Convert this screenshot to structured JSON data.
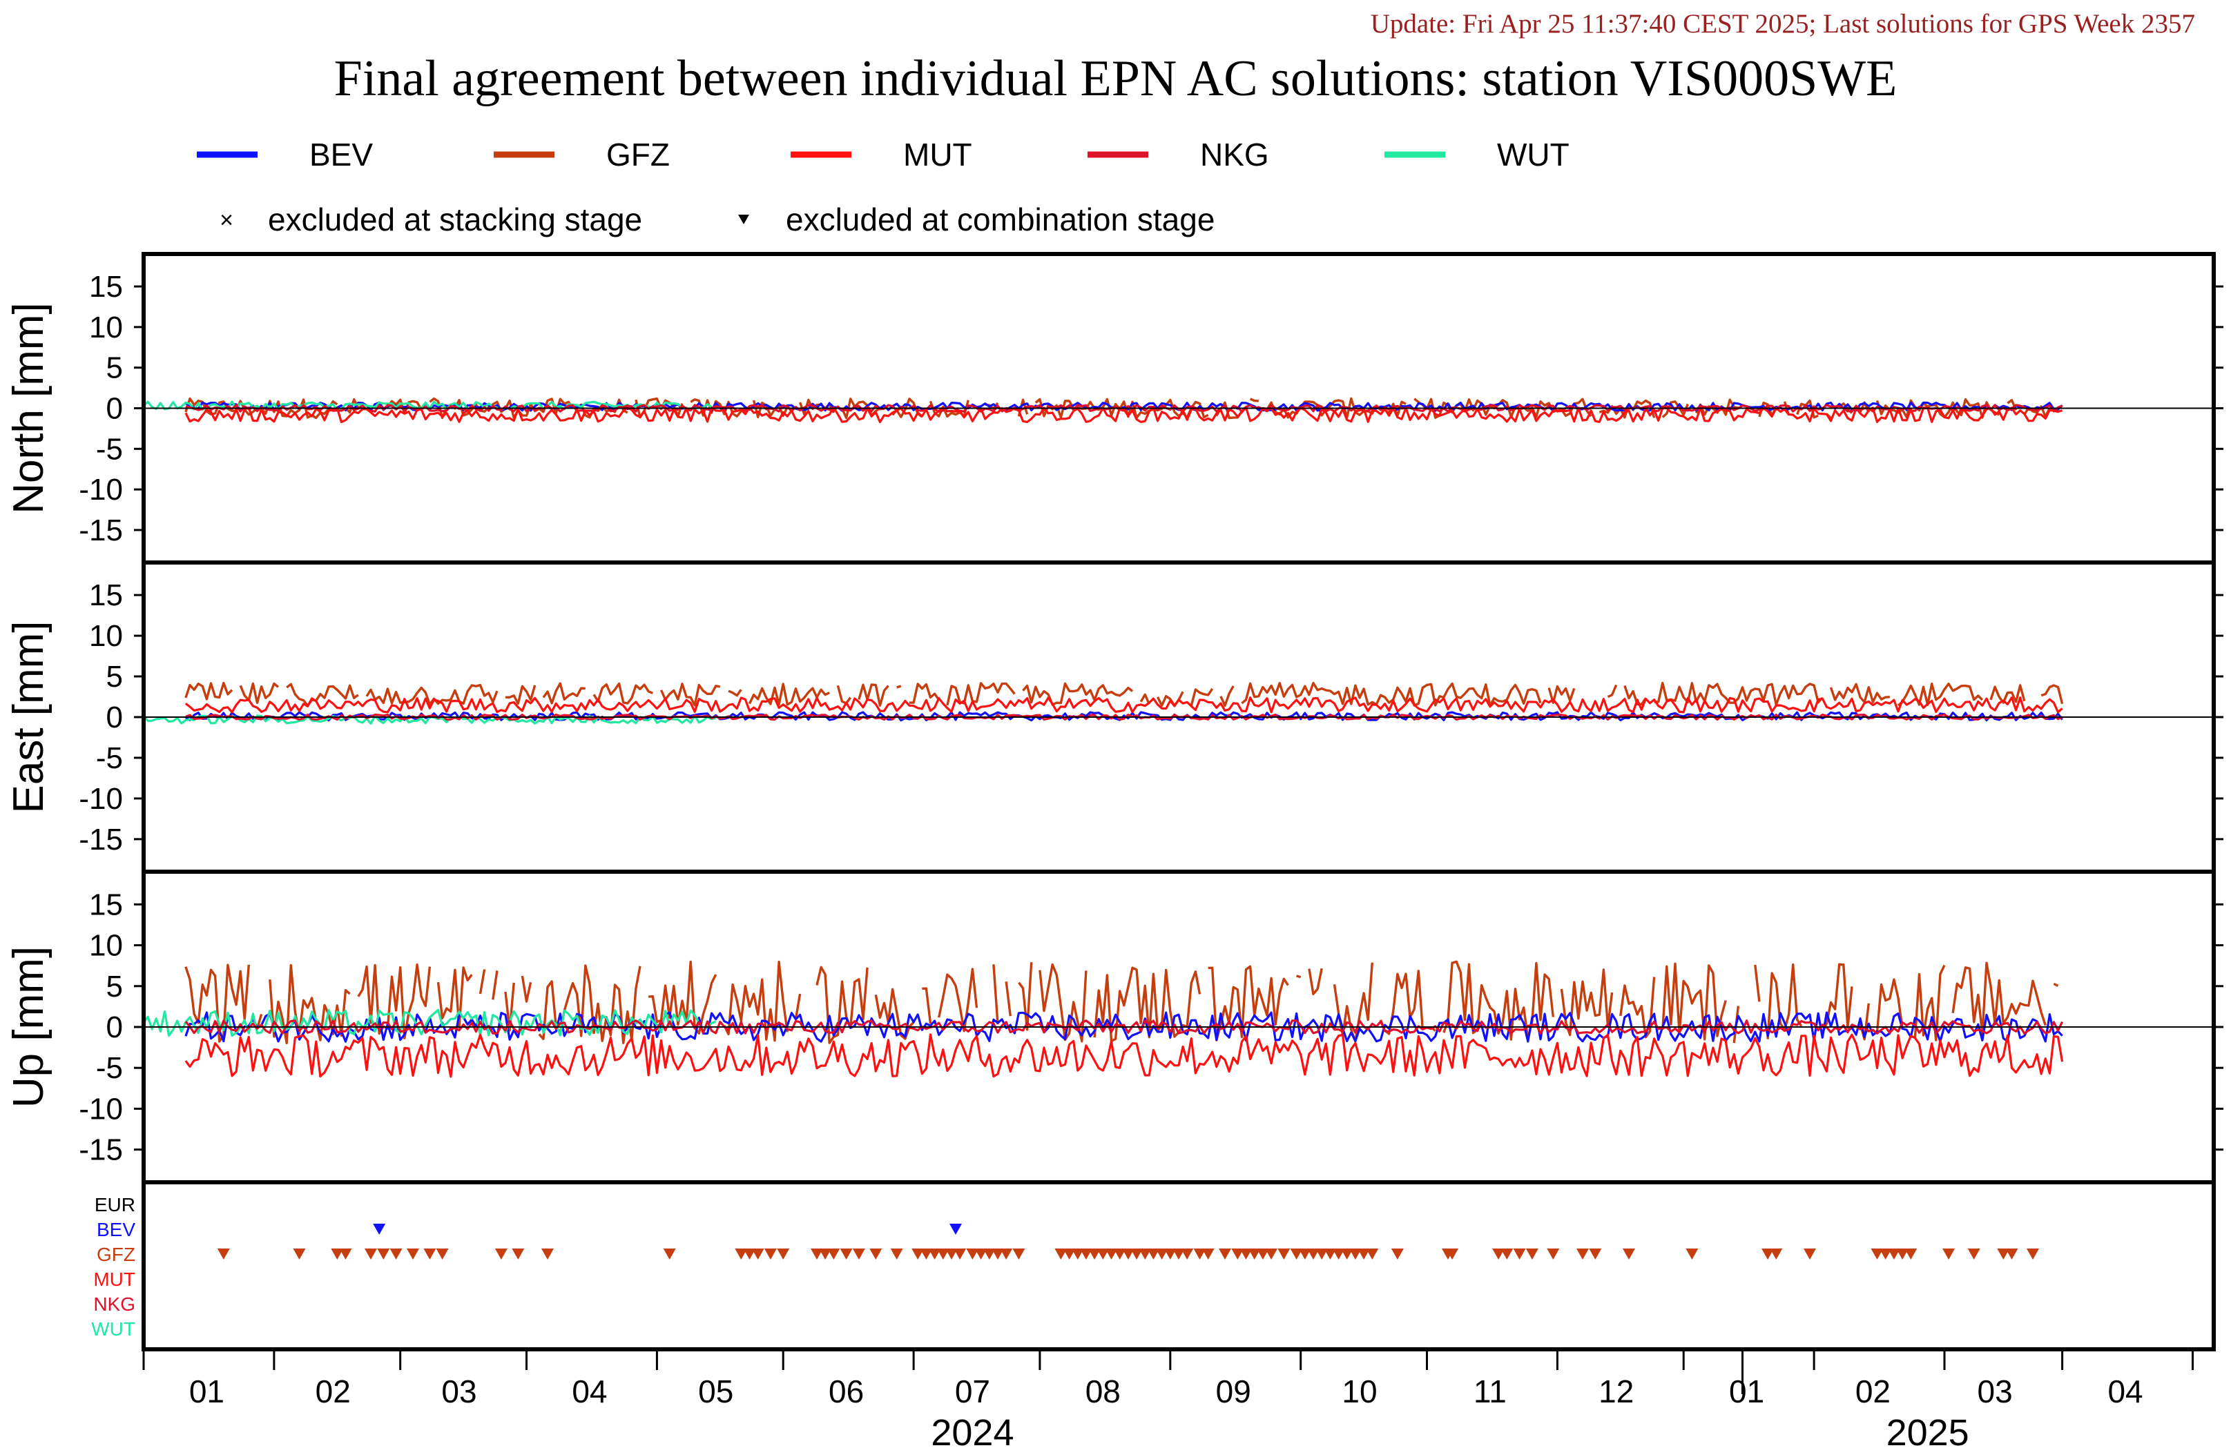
{
  "update_text": "Update: Fri Apr 25 11:37:40 CEST 2025; Last solutions for GPS Week 2357",
  "chart_data": {
    "type": "line",
    "title": "Final agreement between individual EPN AC solutions: station VIS000SWE",
    "legend": {
      "placement": "top",
      "series": [
        {
          "name": "BEV",
          "color": "#1010ff"
        },
        {
          "name": "GFZ",
          "color": "#c63d0e"
        },
        {
          "name": "MUT",
          "color": "#ff1010"
        },
        {
          "name": "NKG",
          "color": "#e0102a"
        },
        {
          "name": "WUT",
          "color": "#20e8a0"
        }
      ],
      "markers": [
        {
          "symbol": "×",
          "label": "excluded at stacking stage"
        },
        {
          "symbol": "▼",
          "label": "excluded at combination stage"
        }
      ]
    },
    "panels": [
      {
        "ylabel": "North [mm]",
        "ylim": [
          -19,
          19
        ],
        "yticks": [
          15,
          10,
          5,
          0,
          -5,
          -10,
          -15
        ],
        "series": [
          {
            "name": "BEV",
            "mean": 0.2,
            "amp": 0.5
          },
          {
            "name": "GFZ",
            "mean": 0.0,
            "amp": 1.2
          },
          {
            "name": "MUT",
            "mean": -0.8,
            "amp": 0.9
          },
          {
            "name": "NKG",
            "mean": 0.0,
            "amp": 0.4
          },
          {
            "name": "WUT",
            "mean": 0.3,
            "amp": 0.5
          }
        ]
      },
      {
        "ylabel": "East [mm]",
        "ylim": [
          -19,
          19
        ],
        "yticks": [
          15,
          10,
          5,
          0,
          -5,
          -10,
          -15
        ],
        "series": [
          {
            "name": "BEV",
            "mean": 0.1,
            "amp": 0.5
          },
          {
            "name": "GFZ",
            "mean": 2.8,
            "amp": 1.4
          },
          {
            "name": "MUT",
            "mean": 1.5,
            "amp": 0.9
          },
          {
            "name": "NKG",
            "mean": 0.0,
            "amp": 0.3
          },
          {
            "name": "WUT",
            "mean": -0.3,
            "amp": 0.5
          }
        ]
      },
      {
        "ylabel": "Up [mm]",
        "ylim": [
          -19,
          19
        ],
        "yticks": [
          15,
          10,
          5,
          0,
          -5,
          -10,
          -15
        ],
        "series": [
          {
            "name": "BEV",
            "mean": 0.0,
            "amp": 1.8
          },
          {
            "name": "GFZ",
            "mean": 3.0,
            "amp": 5.0
          },
          {
            "name": "MUT",
            "mean": -3.5,
            "amp": 2.6
          },
          {
            "name": "NKG",
            "mean": 0.0,
            "amp": 0.8
          },
          {
            "name": "WUT",
            "mean": 0.5,
            "amp": 1.6
          }
        ]
      }
    ],
    "exclusion_panel": {
      "rows": [
        {
          "label": "EUR",
          "color": "#000000"
        },
        {
          "label": "BEV",
          "color": "#1010ff"
        },
        {
          "label": "GFZ",
          "color": "#c63d0e"
        },
        {
          "label": "MUT",
          "color": "#ff1010"
        },
        {
          "label": "NKG",
          "color": "#e0102a"
        },
        {
          "label": "WUT",
          "color": "#20e8a0"
        }
      ],
      "combination_excluded": {
        "BEV": [
          "2024-02-11",
          "2024-06-27"
        ],
        "GFZ": [
          "2024-01-05",
          "2024-01-23",
          "2024-02-01",
          "2024-02-03",
          "2024-02-09",
          "2024-02-12",
          "2024-02-15",
          "2024-02-19",
          "2024-02-23",
          "2024-02-26",
          "2024-03-11",
          "2024-03-15",
          "2024-03-22",
          "2024-04-20",
          "2024-05-07",
          "2024-05-09",
          "2024-05-11",
          "2024-05-14",
          "2024-05-17",
          "2024-05-25",
          "2024-05-27",
          "2024-05-29",
          "2024-06-01",
          "2024-06-04",
          "2024-06-08",
          "2024-06-13",
          "2024-06-18",
          "2024-06-20",
          "2024-06-22",
          "2024-06-24",
          "2024-06-26",
          "2024-06-28",
          "2024-07-01",
          "2024-07-03",
          "2024-07-05",
          "2024-07-07",
          "2024-07-09",
          "2024-07-12",
          "2024-07-22",
          "2024-07-24",
          "2024-07-26",
          "2024-07-28",
          "2024-07-30",
          "2024-08-01",
          "2024-08-03",
          "2024-08-05",
          "2024-08-07",
          "2024-08-09",
          "2024-08-11",
          "2024-08-13",
          "2024-08-15",
          "2024-08-17",
          "2024-08-19",
          "2024-08-21",
          "2024-08-24",
          "2024-08-26",
          "2024-08-30",
          "2024-09-02",
          "2024-09-04",
          "2024-09-06",
          "2024-09-08",
          "2024-09-10",
          "2024-09-13",
          "2024-09-16",
          "2024-09-18",
          "2024-09-20",
          "2024-09-22",
          "2024-09-24",
          "2024-09-26",
          "2024-09-28",
          "2024-09-30",
          "2024-10-02",
          "2024-10-04",
          "2024-10-10",
          "2024-10-22",
          "2024-10-23",
          "2024-11-03",
          "2024-11-05",
          "2024-11-08",
          "2024-11-11",
          "2024-11-16",
          "2024-11-23",
          "2024-11-26",
          "2024-12-04",
          "2024-12-19",
          "2025-01-06",
          "2025-01-08",
          "2025-01-16",
          "2025-02-01",
          "2025-02-03",
          "2025-02-05",
          "2025-02-07",
          "2025-02-09",
          "2025-02-18",
          "2025-02-24",
          "2025-03-03",
          "2025-03-05",
          "2025-03-10"
        ]
      }
    },
    "x_axis": {
      "range": [
        "2023-12-17",
        "2025-04-22"
      ],
      "month_ticks": [
        "2023-12-17",
        "2024-01-17",
        "2024-02-16",
        "2024-03-17",
        "2024-04-17",
        "2024-05-17",
        "2024-06-17",
        "2024-07-17",
        "2024-08-17",
        "2024-09-17",
        "2024-10-17",
        "2024-11-17",
        "2024-12-17",
        "2025-01-17",
        "2025-02-17",
        "2025-03-17",
        "2025-04-17"
      ],
      "month_labels": [
        {
          "text": "01",
          "date": "2024-01-01"
        },
        {
          "text": "02",
          "date": "2024-01-31"
        },
        {
          "text": "03",
          "date": "2024-03-01"
        },
        {
          "text": "04",
          "date": "2024-04-01"
        },
        {
          "text": "05",
          "date": "2024-05-01"
        },
        {
          "text": "06",
          "date": "2024-06-01"
        },
        {
          "text": "07",
          "date": "2024-07-01"
        },
        {
          "text": "08",
          "date": "2024-08-01"
        },
        {
          "text": "09",
          "date": "2024-09-01"
        },
        {
          "text": "10",
          "date": "2024-10-01"
        },
        {
          "text": "11",
          "date": "2024-11-01"
        },
        {
          "text": "12",
          "date": "2024-12-01"
        },
        {
          "text": "01",
          "date": "2025-01-01"
        },
        {
          "text": "02",
          "date": "2025-01-31"
        },
        {
          "text": "03",
          "date": "2025-03-01"
        },
        {
          "text": "04",
          "date": "2025-04-01"
        }
      ],
      "year_labels": [
        {
          "text": "2024",
          "date": "2024-07-01"
        },
        {
          "text": "2025",
          "date": "2025-02-13"
        }
      ],
      "year_boundary": "2024-12-31"
    }
  }
}
